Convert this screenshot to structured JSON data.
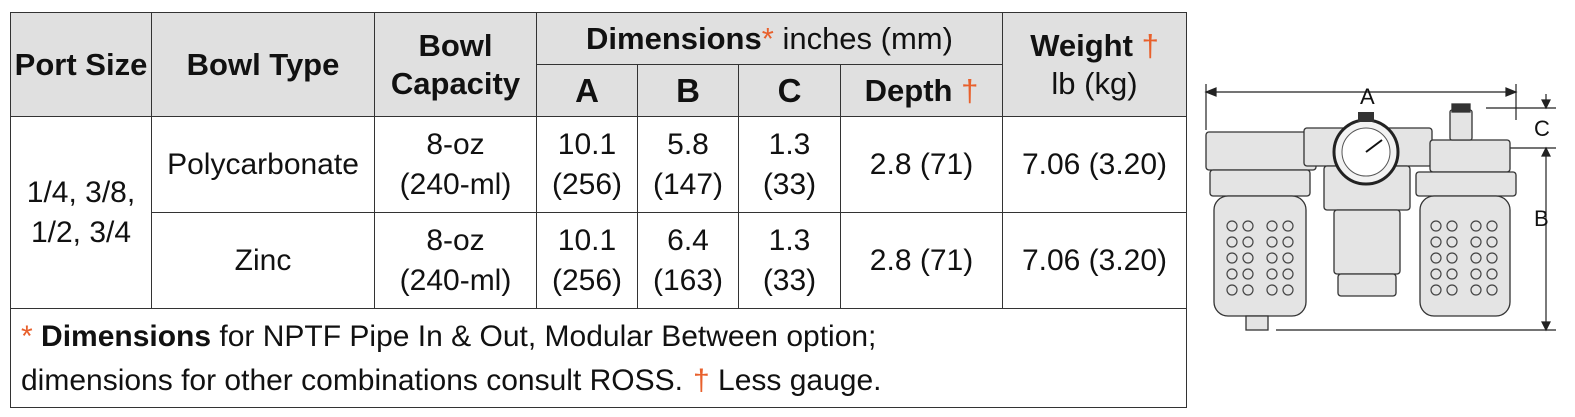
{
  "table": {
    "headers": {
      "port_size": "Port Size",
      "bowl_type": "Bowl Type",
      "bowl_capacity_1": "Bowl",
      "bowl_capacity_2": "Capacity",
      "dimensions_bold": "Dimensions",
      "dimensions_mark": "*",
      "dimensions_units": " inches (mm)",
      "col_a": "A",
      "col_b": "B",
      "col_c": "C",
      "depth": "Depth",
      "depth_mark": "†",
      "weight": "Weight",
      "weight_mark": "†",
      "weight_units": "lb (kg)"
    },
    "port_size_line1": "1/4, 3/8,",
    "port_size_line2": "1/2, 3/4",
    "rows": [
      {
        "bowl_type": "Polycarbonate",
        "capacity_oz": "8-oz",
        "capacity_ml": "(240-ml)",
        "a_in": "10.1",
        "a_mm": "(256)",
        "b_in": "5.8",
        "b_mm": "(147)",
        "c_in": "1.3",
        "c_mm": "(33)",
        "depth": "2.8 (71)",
        "weight": "7.06 (3.20)"
      },
      {
        "bowl_type": "Zinc",
        "capacity_oz": "8-oz",
        "capacity_ml": "(240-ml)",
        "a_in": "10.1",
        "a_mm": "(256)",
        "b_in": "6.4",
        "b_mm": "(163)",
        "c_in": "1.3",
        "c_mm": "(33)",
        "depth": "2.8 (71)",
        "weight": "7.06 (3.20)"
      }
    ],
    "footnote": {
      "asterisk": "*",
      "bold": "Dimensions",
      "line1_rest": " for NPTF Pipe In & Out,  Modular Between option;",
      "line2": "dimensions for other combinations consult ROSS.",
      "dagger": "†",
      "dagger_text": " Less gauge."
    }
  },
  "diagram": {
    "label_a": "A",
    "label_b": "B",
    "label_c": "C"
  },
  "colors": {
    "accent": "#e8602c",
    "header_bg": "#e0e0e0"
  }
}
